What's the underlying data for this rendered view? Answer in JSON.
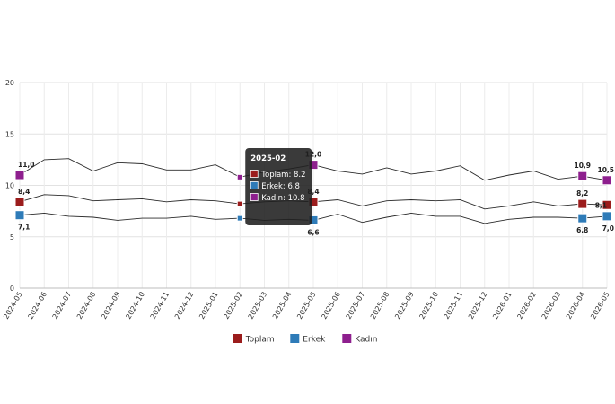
{
  "chart_data": {
    "type": "line",
    "categories": [
      "2024-05",
      "2024-06",
      "2024-07",
      "2024-08",
      "2024-09",
      "2024-10",
      "2024-11",
      "2024-12",
      "2025-01",
      "2025-02",
      "2025-03",
      "2025-04",
      "2025-05",
      "2025-06",
      "2025-07",
      "2025-08",
      "2025-09",
      "2025-10",
      "2025-11",
      "2025-12",
      "2026-01",
      "2026-02",
      "2026-03",
      "2026-04",
      "2026-05"
    ],
    "ylim": [
      0,
      20
    ],
    "yticks": [
      "0",
      "5",
      "10",
      "15",
      "20"
    ],
    "grid": true,
    "legend_position": "bottom",
    "series": [
      {
        "name": "Toplam",
        "color": "#9b1c1c",
        "values": [
          8.4,
          9.1,
          9.0,
          8.5,
          8.6,
          8.7,
          8.4,
          8.6,
          8.5,
          8.2,
          8.4,
          8.5,
          8.4,
          8.6,
          8.0,
          8.5,
          8.6,
          8.5,
          8.6,
          7.7,
          8.0,
          8.4,
          8.0,
          8.2,
          8.1
        ],
        "markers": [
          0,
          9,
          12,
          23,
          24
        ],
        "labels": {
          "0": "8,4",
          "12": "8,4",
          "23": "8,2",
          "24": "8,1"
        }
      },
      {
        "name": "Erkek",
        "color": "#2e7bb8",
        "values": [
          7.1,
          7.3,
          7.0,
          6.9,
          6.6,
          6.8,
          6.8,
          7.0,
          6.7,
          6.8,
          6.6,
          6.7,
          6.6,
          7.2,
          6.4,
          6.9,
          7.3,
          7.0,
          7.0,
          6.3,
          6.7,
          6.9,
          6.9,
          6.8,
          7.0
        ],
        "markers": [
          0,
          9,
          12,
          23,
          24
        ],
        "labels": {
          "0": "7,1",
          "12": "6,6",
          "23": "6,8",
          "24": "7,0"
        }
      },
      {
        "name": "Kadın",
        "color": "#8e1f8e",
        "values": [
          11.0,
          12.5,
          12.6,
          11.4,
          12.2,
          12.1,
          11.5,
          11.5,
          12.0,
          10.8,
          11.3,
          11.6,
          12.0,
          11.4,
          11.1,
          11.7,
          11.1,
          11.4,
          11.9,
          10.5,
          11.0,
          11.4,
          10.6,
          10.9,
          10.5
        ],
        "markers": [
          0,
          9,
          12,
          23,
          24
        ],
        "labels": {
          "0": "11,0",
          "12": "12,0",
          "23": "10,9",
          "24": "10,5"
        }
      }
    ],
    "tooltip": {
      "index": 9,
      "title": "2025-02",
      "lines": [
        "Toplam: 8.2",
        "Erkek: 6.8",
        "Kadın: 10.8"
      ]
    }
  }
}
